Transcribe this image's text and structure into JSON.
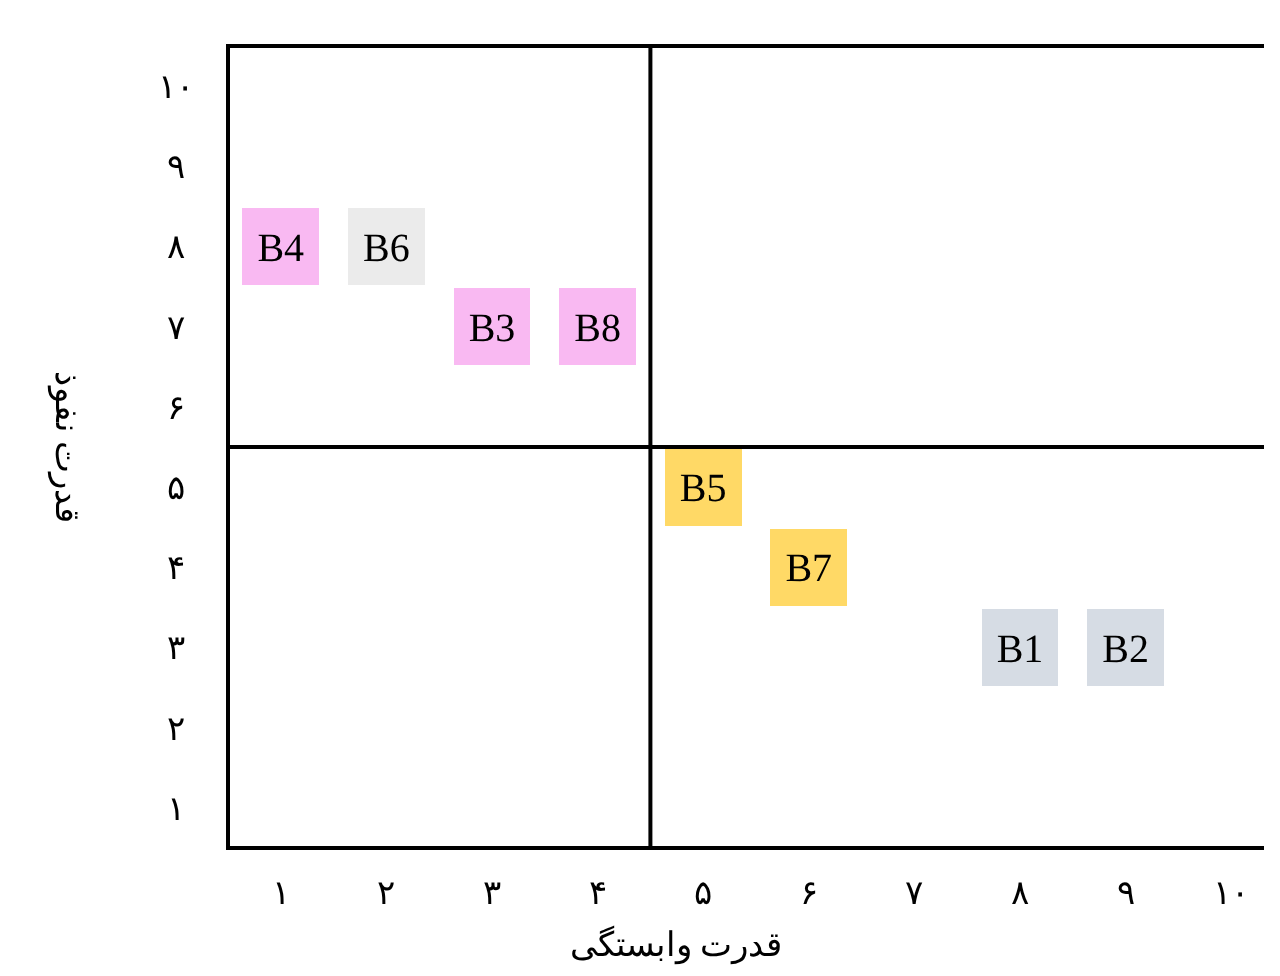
{
  "chart_data": {
    "type": "scatter",
    "marker": "square",
    "xlabel": "قدرت وابستگی",
    "ylabel": "قدرت نفوذ",
    "xlim": [
      0.5,
      10.5
    ],
    "ylim": [
      0.5,
      10.5
    ],
    "xticks": [
      {
        "value": 1,
        "label": "۱"
      },
      {
        "value": 2,
        "label": "۲"
      },
      {
        "value": 3,
        "label": "۳"
      },
      {
        "value": 4,
        "label": "۴"
      },
      {
        "value": 5,
        "label": "۵"
      },
      {
        "value": 6,
        "label": "۶"
      },
      {
        "value": 7,
        "label": "۷"
      },
      {
        "value": 8,
        "label": "۸"
      },
      {
        "value": 9,
        "label": "۹"
      },
      {
        "value": 10,
        "label": "۱۰"
      }
    ],
    "yticks": [
      {
        "value": 1,
        "label": "۱"
      },
      {
        "value": 2,
        "label": "۲"
      },
      {
        "value": 3,
        "label": "۳"
      },
      {
        "value": 4,
        "label": "۴"
      },
      {
        "value": 5,
        "label": "۵"
      },
      {
        "value": 6,
        "label": "۶"
      },
      {
        "value": 7,
        "label": "۷"
      },
      {
        "value": 8,
        "label": "۸"
      },
      {
        "value": 9,
        "label": "۹"
      },
      {
        "value": 10,
        "label": "۱۰"
      }
    ],
    "ref_lines": [
      {
        "axis": "x",
        "value": 4.5,
        "color": "#000000"
      },
      {
        "axis": "y",
        "value": 5.5,
        "color": "#000000"
      }
    ],
    "grid": false,
    "series": [
      {
        "name": "B4",
        "color": "#f9b9f2",
        "x": [
          1
        ],
        "values": [
          8
        ]
      },
      {
        "name": "B6",
        "color": "#ebebeb",
        "x": [
          2
        ],
        "values": [
          8
        ]
      },
      {
        "name": "B3",
        "color": "#f9b9f2",
        "x": [
          3
        ],
        "values": [
          7
        ]
      },
      {
        "name": "B8",
        "color": "#f9b9f2",
        "x": [
          4
        ],
        "values": [
          7
        ]
      },
      {
        "name": "B5",
        "color": "#ffd966",
        "x": [
          5
        ],
        "values": [
          5
        ]
      },
      {
        "name": "B7",
        "color": "#ffd966",
        "x": [
          6
        ],
        "values": [
          4
        ]
      },
      {
        "name": "B1",
        "color": "#d6dce4",
        "x": [
          8
        ],
        "values": [
          3
        ]
      },
      {
        "name": "B2",
        "color": "#d6dce4",
        "x": [
          9
        ],
        "values": [
          3
        ]
      }
    ]
  }
}
